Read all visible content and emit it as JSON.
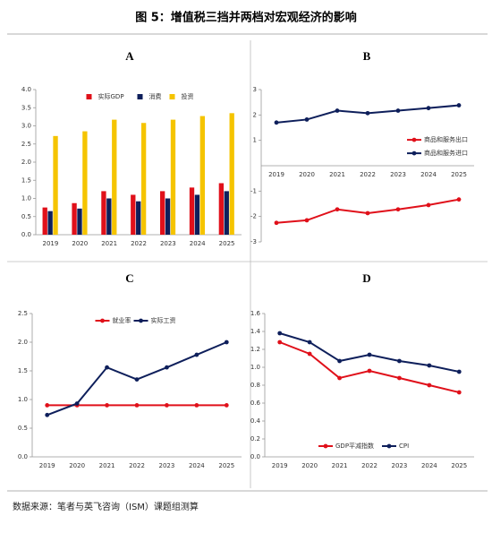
{
  "title": "图 5：增值税三挡并两档对宏观经济的影响",
  "source": "数据来源：笔者与英飞咨询（ISM）课题组测算",
  "chart_data": [
    {
      "type": "bar",
      "panel": "A",
      "legend": "top",
      "categories": [
        "2019",
        "2020",
        "2021",
        "2022",
        "2023",
        "2024",
        "2025"
      ],
      "series": [
        {
          "name": "实际GDP",
          "color": "#e0101a",
          "values": [
            0.75,
            0.87,
            1.2,
            1.1,
            1.2,
            1.3,
            1.42
          ]
        },
        {
          "name": "消费",
          "color": "#0e1f5b",
          "values": [
            0.65,
            0.72,
            1.0,
            0.92,
            1.0,
            1.1,
            1.2
          ]
        },
        {
          "name": "投资",
          "color": "#f5c400",
          "values": [
            2.72,
            2.85,
            3.17,
            3.08,
            3.17,
            3.27,
            3.35
          ]
        }
      ],
      "ylim": [
        0,
        4
      ],
      "yticks": [
        {
          "value": 0,
          "label": "0.0"
        },
        0.5,
        {
          "value": 1,
          "label": "1.0"
        },
        1.5,
        {
          "value": 2,
          "label": "2.0"
        },
        2.5,
        {
          "value": 3,
          "label": "3.0"
        },
        3.5,
        {
          "value": 4,
          "label": "4.0"
        }
      ]
    },
    {
      "type": "line",
      "panel": "B",
      "legend": "right",
      "categories": [
        "2019",
        "2020",
        "2021",
        "2022",
        "2023",
        "2024",
        "2025"
      ],
      "series": [
        {
          "name": "商品和服务出口",
          "color": "#e0101a",
          "values": [
            -2.25,
            -2.15,
            -1.72,
            -1.87,
            -1.72,
            -1.55,
            -1.33
          ]
        },
        {
          "name": "商品和服务进口",
          "color": "#0e1f5b",
          "values": [
            1.7,
            1.82,
            2.17,
            2.07,
            2.17,
            2.27,
            2.38
          ]
        }
      ],
      "ylim": [
        -3,
        3
      ],
      "yticks": [
        -3,
        -2,
        -1,
        1,
        2,
        3
      ]
    },
    {
      "type": "line",
      "panel": "C",
      "legend": "top",
      "categories": [
        "2019",
        "2020",
        "2021",
        "2022",
        "2023",
        "2024",
        "2025"
      ],
      "series": [
        {
          "name": "就业率",
          "color": "#e0101a",
          "values": [
            0.9,
            0.9,
            0.9,
            0.9,
            0.9,
            0.9,
            0.9
          ]
        },
        {
          "name": "实际工资",
          "color": "#0e1f5b",
          "values": [
            0.73,
            0.93,
            1.56,
            1.35,
            1.56,
            1.78,
            2.0
          ]
        }
      ],
      "ylim": [
        0,
        2.5
      ],
      "yticks": [
        {
          "value": 0,
          "label": "0.0"
        },
        0.5,
        {
          "value": 1,
          "label": "1.0"
        },
        1.5,
        {
          "value": 2,
          "label": "2.0"
        },
        2.5
      ]
    },
    {
      "type": "line",
      "panel": "D",
      "legend": "bottom",
      "categories": [
        "2019",
        "2020",
        "2021",
        "2022",
        "2023",
        "2024",
        "2025"
      ],
      "series": [
        {
          "name": "GDP平减指数",
          "color": "#e0101a",
          "values": [
            1.28,
            1.15,
            0.88,
            0.96,
            0.88,
            0.8,
            0.72
          ]
        },
        {
          "name": "CPI",
          "color": "#0e1f5b",
          "values": [
            1.38,
            1.28,
            1.07,
            1.14,
            1.07,
            1.02,
            0.95
          ]
        }
      ],
      "ylim": [
        0,
        1.6
      ],
      "yticks": [
        {
          "value": 0,
          "label": "0.0"
        },
        0.2,
        0.4,
        0.6,
        0.8,
        {
          "value": 1,
          "label": "1.0"
        },
        1.2,
        1.4,
        1.6
      ]
    }
  ]
}
